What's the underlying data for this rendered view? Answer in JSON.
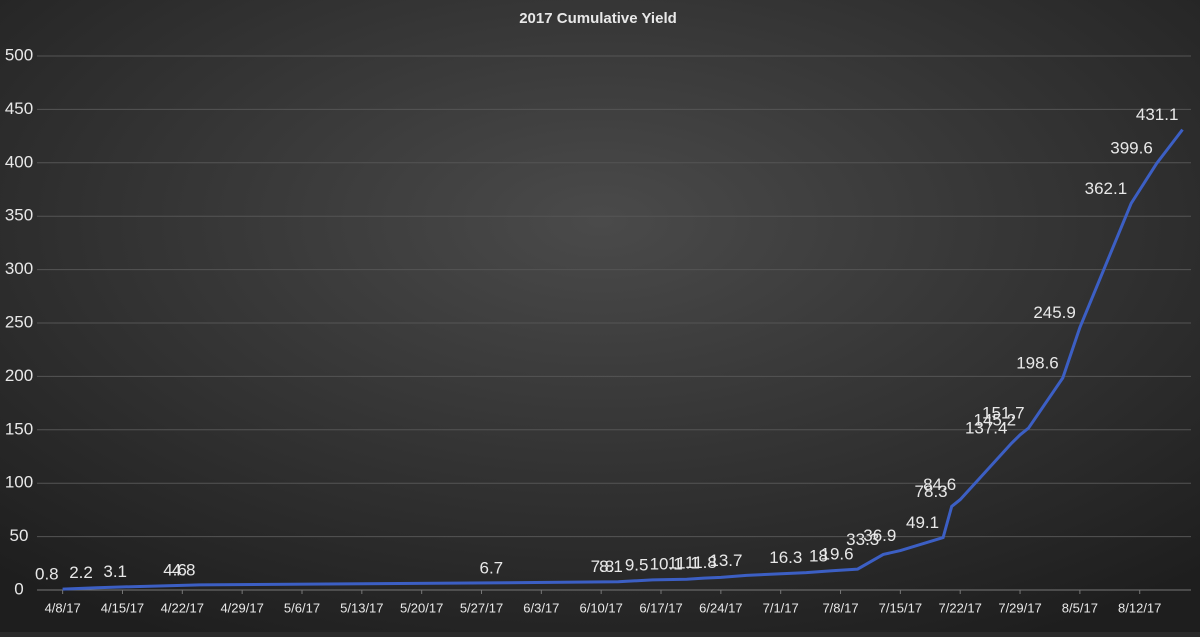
{
  "chart_data": {
    "type": "line",
    "title": "2017 Cumulative Yield",
    "x": [
      "4/8/17",
      "4/12/17",
      "4/16/17",
      "4/23/17",
      "4/24/17",
      "5/30/17",
      "6/12/17",
      "6/13/17",
      "6/16/17",
      "6/20/17",
      "6/22/17",
      "6/24/17",
      "6/27/17",
      "7/4/17",
      "7/7/17",
      "7/10/17",
      "7/13/17",
      "7/15/17",
      "7/20/17",
      "7/21/17",
      "7/22/17",
      "7/28/17",
      "7/29/17",
      "7/30/17",
      "8/3/17",
      "8/5/17",
      "8/11/17",
      "8/14/17",
      "8/17/17"
    ],
    "values": [
      0.8,
      2.2,
      3.1,
      4.6,
      4.8,
      6.7,
      7.8,
      8.1,
      9.5,
      10.1,
      11.1,
      11.8,
      13.7,
      16.3,
      18.0,
      19.6,
      33.3,
      36.9,
      49.1,
      78.3,
      84.6,
      137.4,
      145.2,
      151.7,
      198.6,
      245.9,
      362.1,
      399.6,
      431.1
    ],
    "color": "#3c5fc4",
    "xlim": [
      "4/5/17",
      "8/18/17"
    ],
    "xticks": [
      "4/8/17",
      "4/15/17",
      "4/22/17",
      "4/29/17",
      "5/6/17",
      "5/13/17",
      "5/20/17",
      "5/27/17",
      "6/3/17",
      "6/10/17",
      "6/17/17",
      "6/24/17",
      "7/1/17",
      "7/8/17",
      "7/15/17",
      "7/22/17",
      "7/29/17",
      "8/5/17",
      "8/12/17"
    ],
    "ylim": [
      0,
      500
    ],
    "yticks": [
      0,
      50,
      100,
      150,
      200,
      250,
      300,
      350,
      400,
      450,
      500
    ],
    "grid": true
  }
}
